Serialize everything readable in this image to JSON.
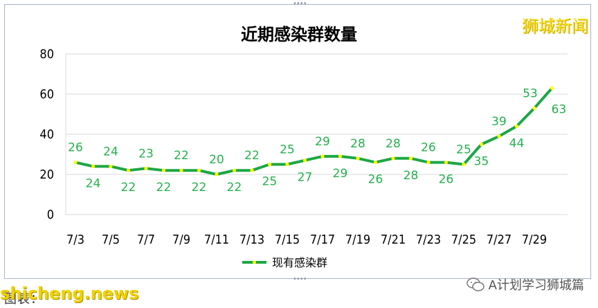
{
  "brand": "狮城新闻",
  "watermark": "shicheng.news",
  "source_text": "图表：",
  "wechat": "A计划学习狮城篇",
  "colors": {
    "line": "#1ca745",
    "marker": "#ffff00",
    "label": "#22b04b",
    "grid": "#d9d9d9"
  },
  "chart_data": {
    "type": "line",
    "title": "近期感染群数量",
    "xlabel": "",
    "ylabel": "",
    "ylim": [
      0,
      80
    ],
    "yticks": [
      0,
      20,
      40,
      60,
      80
    ],
    "grid": true,
    "legend": "bottom",
    "x": [
      "7/3",
      "7/4",
      "7/5",
      "7/6",
      "7/7",
      "7/8",
      "7/9",
      "7/10",
      "7/11",
      "7/12",
      "7/13",
      "7/14",
      "7/15",
      "7/16",
      "7/17",
      "7/18",
      "7/19",
      "7/20",
      "7/21",
      "7/22",
      "7/23",
      "7/24",
      "7/25",
      "7/26",
      "7/27",
      "7/28",
      "7/29",
      "7/30"
    ],
    "xtick_labels": [
      "7/3",
      "7/5",
      "7/7",
      "7/9",
      "7/11",
      "7/13",
      "7/15",
      "7/17",
      "7/19",
      "7/21",
      "7/23",
      "7/25",
      "7/27",
      "7/29"
    ],
    "series": [
      {
        "name": "现有感染群",
        "values": [
          26,
          24,
          24,
          22,
          23,
          22,
          22,
          22,
          20,
          22,
          22,
          25,
          25,
          27,
          29,
          29,
          28,
          26,
          28,
          28,
          26,
          26,
          25,
          35,
          39,
          44,
          53,
          63
        ]
      }
    ]
  }
}
